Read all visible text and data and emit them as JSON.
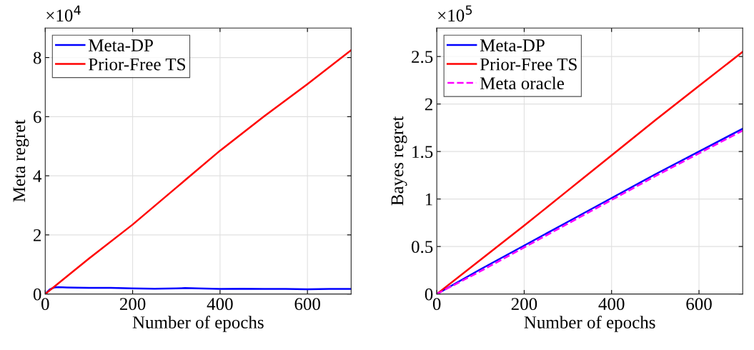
{
  "chart_data": [
    {
      "type": "line",
      "xlabel": "Number of epochs",
      "ylabel": "Meta regret",
      "annotations": [
        "×10$^{4}$"
      ],
      "xlim": [
        0,
        700
      ],
      "xticks": [
        0,
        200,
        400,
        600
      ],
      "ylim": [
        0,
        9
      ],
      "yticks": [
        0,
        2,
        4,
        6,
        8
      ],
      "grid": true,
      "legend": "top left",
      "line_style": "solid",
      "marker": "none",
      "series": [
        {
          "name": "Meta-DP",
          "color": "#0000ff",
          "x": [
            0,
            10,
            20,
            30,
            50,
            100,
            150,
            200,
            250,
            300,
            320,
            350,
            400,
            450,
            500,
            550,
            600,
            650,
            700
          ],
          "values": [
            0,
            0.15,
            0.22,
            0.23,
            0.22,
            0.21,
            0.21,
            0.19,
            0.18,
            0.19,
            0.2,
            0.19,
            0.17,
            0.18,
            0.17,
            0.17,
            0.16,
            0.17,
            0.17
          ]
        },
        {
          "name": "Prior-Free TS",
          "color": "#ff0000",
          "x": [
            0,
            50,
            100,
            200,
            300,
            400,
            500,
            600,
            700
          ],
          "values": [
            0,
            0.6,
            1.2,
            2.35,
            3.6,
            4.85,
            6.0,
            7.1,
            8.25
          ]
        }
      ]
    },
    {
      "type": "line",
      "xlabel": "Number of epochs",
      "ylabel": "Bayes regret",
      "annotations": [
        "×10$^{5}$"
      ],
      "xlim": [
        0,
        700
      ],
      "xticks": [
        0,
        200,
        400,
        600
      ],
      "ylim": [
        0,
        2.8
      ],
      "yticks": [
        0,
        0.5,
        1,
        1.5,
        2,
        2.5
      ],
      "grid": true,
      "legend": "top left",
      "marker": "none",
      "series": [
        {
          "name": "Meta-DP",
          "color": "#0000ff",
          "x": [
            0,
            100,
            200,
            300,
            400,
            500,
            600,
            700
          ],
          "values": [
            0,
            0.26,
            0.51,
            0.76,
            1.01,
            1.26,
            1.5,
            1.74
          ]
        },
        {
          "name": "Prior-Free TS",
          "color": "#ff0000",
          "x": [
            0,
            100,
            200,
            300,
            400,
            500,
            600,
            700
          ],
          "values": [
            0,
            0.36,
            0.72,
            1.09,
            1.46,
            1.83,
            2.19,
            2.55
          ]
        },
        {
          "name": "Meta oracle",
          "color": "#ff00ff",
          "line_style": "dashed",
          "x": [
            0,
            100,
            200,
            300,
            400,
            500,
            600,
            700
          ],
          "values": [
            0,
            0.24,
            0.49,
            0.74,
            0.99,
            1.24,
            1.48,
            1.72
          ]
        }
      ]
    }
  ]
}
